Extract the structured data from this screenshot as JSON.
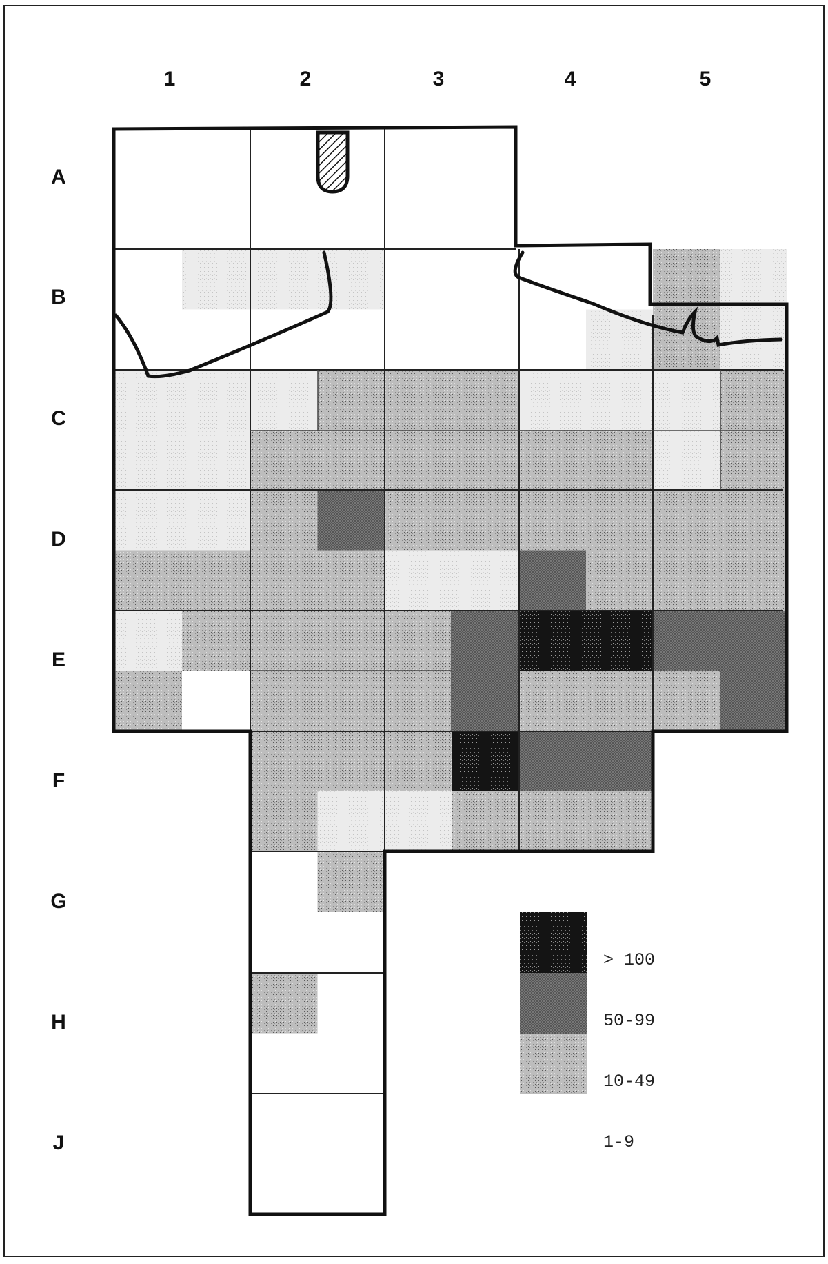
{
  "columns": [
    "1",
    "2",
    "3",
    "4",
    "5"
  ],
  "rows": [
    "A",
    "B",
    "C",
    "D",
    "E",
    "F",
    "G",
    "H",
    "J"
  ],
  "legend": [
    {
      "label": "> 100",
      "level": 4
    },
    {
      "label": "50-99",
      "level": 3
    },
    {
      "label": "10-49",
      "level": 2
    },
    {
      "label": "1-9",
      "level": 1
    }
  ],
  "colors": {
    "level_0": "#ffffff",
    "level_1": "#ededed",
    "level_2": "#c8c8c8",
    "level_3": "#6f6f6f",
    "level_4": "#141414",
    "outline": "#111111",
    "gridline": "#222222"
  },
  "cells": {
    "A1": [
      0,
      0,
      0,
      0
    ],
    "A2": [
      0,
      0,
      0,
      0
    ],
    "A3": [
      0,
      0,
      0,
      0
    ],
    "B1": [
      0,
      1,
      0,
      0
    ],
    "B2": [
      1,
      1,
      0,
      0
    ],
    "B3": [
      0,
      0,
      0,
      0
    ],
    "B4": [
      0,
      0,
      0,
      1
    ],
    "B5": [
      2,
      1,
      2,
      1
    ],
    "C1": [
      1,
      1,
      1,
      1
    ],
    "C2": [
      1,
      2,
      2,
      2
    ],
    "C3": [
      2,
      2,
      2,
      2
    ],
    "C4": [
      1,
      1,
      2,
      2
    ],
    "C5": [
      1,
      2,
      1,
      2
    ],
    "D1": [
      1,
      1,
      2,
      2
    ],
    "D2": [
      2,
      3,
      2,
      2
    ],
    "D3": [
      2,
      2,
      1,
      1
    ],
    "D4": [
      2,
      2,
      3,
      2
    ],
    "D5": [
      2,
      2,
      2,
      2
    ],
    "E1": [
      1,
      2,
      2,
      0
    ],
    "E2": [
      2,
      2,
      2,
      2
    ],
    "E3": [
      2,
      3,
      2,
      3
    ],
    "E4": [
      4,
      4,
      2,
      2
    ],
    "E5": [
      3,
      3,
      2,
      3
    ],
    "F2": [
      2,
      2,
      2,
      1
    ],
    "F3": [
      2,
      4,
      1,
      2
    ],
    "F4": [
      3,
      3,
      2,
      2
    ],
    "G2": [
      0,
      2,
      0,
      0
    ],
    "H2": [
      2,
      0,
      0,
      0
    ],
    "J2": [
      0,
      0,
      0,
      0
    ]
  }
}
